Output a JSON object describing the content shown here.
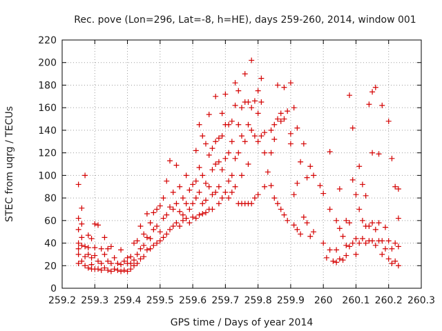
{
  "chart_data": {
    "type": "scatter",
    "title": "Rec. pove (Lon=296, Lat=-8, h=HE), days 259-260, 2014, window 001",
    "xlabel": "GPS time / Days of year 2014",
    "ylabel": "STEC from uqrg / TECUs",
    "xlim": [
      259.2,
      260.3
    ],
    "ylim": [
      0,
      220
    ],
    "xticks": [
      "259.2",
      "259.3",
      "259.4",
      "259.5",
      "259.6",
      "259.7",
      "259.8",
      "259.9",
      "260",
      "260.1",
      "260.2",
      "260.3"
    ],
    "yticks": [
      "0",
      "20",
      "40",
      "60",
      "80",
      "100",
      "120",
      "140",
      "160",
      "180",
      "200",
      "220"
    ],
    "grid": true,
    "marker": "+",
    "color": "#d40000",
    "series": [
      {
        "points": [
          [
            259.25,
            92
          ],
          [
            259.25,
            62
          ],
          [
            259.25,
            52
          ],
          [
            259.25,
            40
          ],
          [
            259.25,
            35
          ],
          [
            259.25,
            30
          ],
          [
            259.25,
            22
          ],
          [
            259.26,
            71
          ],
          [
            259.26,
            57
          ],
          [
            259.26,
            45
          ],
          [
            259.26,
            38
          ],
          [
            259.26,
            24
          ],
          [
            259.27,
            100
          ],
          [
            259.27,
            37
          ],
          [
            259.27,
            28
          ],
          [
            259.27,
            20
          ],
          [
            259.28,
            47
          ],
          [
            259.28,
            36
          ],
          [
            259.28,
            30
          ],
          [
            259.28,
            18
          ],
          [
            259.29,
            44
          ],
          [
            259.29,
            27
          ],
          [
            259.29,
            21
          ],
          [
            259.29,
            17
          ],
          [
            259.3,
            57
          ],
          [
            259.3,
            36
          ],
          [
            259.3,
            29
          ],
          [
            259.3,
            17
          ],
          [
            259.31,
            56
          ],
          [
            259.31,
            24
          ],
          [
            259.31,
            17
          ],
          [
            259.32,
            35
          ],
          [
            259.32,
            22
          ],
          [
            259.32,
            16
          ],
          [
            259.33,
            45
          ],
          [
            259.33,
            30
          ],
          [
            259.33,
            18
          ],
          [
            259.34,
            35
          ],
          [
            259.34,
            24
          ],
          [
            259.34,
            16
          ],
          [
            259.35,
            37
          ],
          [
            259.35,
            22
          ],
          [
            259.35,
            15
          ],
          [
            259.36,
            27
          ],
          [
            259.36,
            17
          ],
          [
            259.37,
            22
          ],
          [
            259.37,
            16
          ],
          [
            259.38,
            34
          ],
          [
            259.38,
            21
          ],
          [
            259.38,
            15
          ],
          [
            259.39,
            24
          ],
          [
            259.39,
            16
          ],
          [
            259.4,
            27
          ],
          [
            259.4,
            22
          ],
          [
            259.4,
            15
          ],
          [
            259.41,
            28
          ],
          [
            259.41,
            22
          ],
          [
            259.41,
            17
          ],
          [
            259.42,
            40
          ],
          [
            259.42,
            25
          ],
          [
            259.42,
            20
          ],
          [
            259.43,
            42
          ],
          [
            259.43,
            30
          ],
          [
            259.43,
            22
          ],
          [
            259.44,
            55
          ],
          [
            259.44,
            35
          ],
          [
            259.44,
            26
          ],
          [
            259.45,
            48
          ],
          [
            259.45,
            38
          ],
          [
            259.45,
            28
          ],
          [
            259.46,
            66
          ],
          [
            259.46,
            45
          ],
          [
            259.46,
            34
          ],
          [
            259.47,
            58
          ],
          [
            259.47,
            44
          ],
          [
            259.47,
            35
          ],
          [
            259.48,
            67
          ],
          [
            259.48,
            52
          ],
          [
            259.48,
            38
          ],
          [
            259.49,
            70
          ],
          [
            259.49,
            55
          ],
          [
            259.49,
            40
          ],
          [
            259.5,
            73
          ],
          [
            259.5,
            50
          ],
          [
            259.5,
            42
          ],
          [
            259.51,
            80
          ],
          [
            259.51,
            62
          ],
          [
            259.51,
            45
          ],
          [
            259.52,
            95
          ],
          [
            259.52,
            65
          ],
          [
            259.52,
            48
          ],
          [
            259.53,
            113
          ],
          [
            259.53,
            72
          ],
          [
            259.53,
            52
          ],
          [
            259.54,
            85
          ],
          [
            259.54,
            70
          ],
          [
            259.54,
            55
          ],
          [
            259.55,
            109
          ],
          [
            259.55,
            75
          ],
          [
            259.55,
            58
          ],
          [
            259.56,
            90
          ],
          [
            259.56,
            68
          ],
          [
            259.56,
            55
          ],
          [
            259.57,
            80
          ],
          [
            259.57,
            65
          ],
          [
            259.57,
            60
          ],
          [
            259.58,
            100
          ],
          [
            259.58,
            75
          ],
          [
            259.58,
            62
          ],
          [
            259.59,
            87
          ],
          [
            259.59,
            70
          ],
          [
            259.59,
            58
          ],
          [
            259.6,
            92
          ],
          [
            259.6,
            75
          ],
          [
            259.6,
            63
          ],
          [
            259.61,
            122
          ],
          [
            259.61,
            95
          ],
          [
            259.61,
            80
          ],
          [
            259.61,
            62
          ],
          [
            259.62,
            145
          ],
          [
            259.62,
            107
          ],
          [
            259.62,
            85
          ],
          [
            259.62,
            65
          ],
          [
            259.63,
            135
          ],
          [
            259.63,
            100
          ],
          [
            259.63,
            75
          ],
          [
            259.63,
            66
          ],
          [
            259.64,
            128
          ],
          [
            259.64,
            93
          ],
          [
            259.64,
            78
          ],
          [
            259.64,
            67
          ],
          [
            259.65,
            154
          ],
          [
            259.65,
            118
          ],
          [
            259.65,
            90
          ],
          [
            259.65,
            70
          ],
          [
            259.66,
            124
          ],
          [
            259.66,
            105
          ],
          [
            259.66,
            83
          ],
          [
            259.66,
            70
          ],
          [
            259.67,
            170
          ],
          [
            259.67,
            130
          ],
          [
            259.67,
            110
          ],
          [
            259.67,
            85
          ],
          [
            259.68,
            133
          ],
          [
            259.68,
            112
          ],
          [
            259.68,
            90
          ],
          [
            259.68,
            75
          ],
          [
            259.69,
            155
          ],
          [
            259.69,
            135
          ],
          [
            259.69,
            105
          ],
          [
            259.69,
            80
          ],
          [
            259.7,
            172
          ],
          [
            259.7,
            145
          ],
          [
            259.7,
            115
          ],
          [
            259.7,
            85
          ],
          [
            259.71,
            145
          ],
          [
            259.71,
            120
          ],
          [
            259.71,
            95
          ],
          [
            259.71,
            80
          ],
          [
            259.72,
            148
          ],
          [
            259.72,
            130
          ],
          [
            259.72,
            100
          ],
          [
            259.72,
            85
          ],
          [
            259.73,
            182
          ],
          [
            259.73,
            162
          ],
          [
            259.73,
            115
          ],
          [
            259.73,
            90
          ],
          [
            259.74,
            175
          ],
          [
            259.74,
            145
          ],
          [
            259.74,
            120
          ],
          [
            259.74,
            75
          ],
          [
            259.75,
            160
          ],
          [
            259.75,
            135
          ],
          [
            259.75,
            100
          ],
          [
            259.75,
            75
          ],
          [
            259.76,
            190
          ],
          [
            259.76,
            165
          ],
          [
            259.76,
            130
          ],
          [
            259.76,
            75
          ],
          [
            259.77,
            165
          ],
          [
            259.77,
            145
          ],
          [
            259.77,
            110
          ],
          [
            259.77,
            75
          ],
          [
            259.78,
            202
          ],
          [
            259.78,
            160
          ],
          [
            259.78,
            140
          ],
          [
            259.78,
            75
          ],
          [
            259.79,
            166
          ],
          [
            259.79,
            135
          ],
          [
            259.79,
            80
          ],
          [
            259.8,
            175
          ],
          [
            259.8,
            155
          ],
          [
            259.8,
            130
          ],
          [
            259.8,
            83
          ],
          [
            259.81,
            186
          ],
          [
            259.81,
            165
          ],
          [
            259.81,
            135
          ],
          [
            259.82,
            138
          ],
          [
            259.82,
            120
          ],
          [
            259.82,
            90
          ],
          [
            259.83,
            103
          ],
          [
            259.84,
            140
          ],
          [
            259.84,
            120
          ],
          [
            259.84,
            91
          ],
          [
            259.85,
            145
          ],
          [
            259.85,
            132
          ],
          [
            259.85,
            80
          ],
          [
            259.86,
            180
          ],
          [
            259.86,
            150
          ],
          [
            259.86,
            75
          ],
          [
            259.87,
            155
          ],
          [
            259.87,
            148
          ],
          [
            259.87,
            70
          ],
          [
            259.88,
            178
          ],
          [
            259.88,
            150
          ],
          [
            259.88,
            65
          ],
          [
            259.89,
            157
          ],
          [
            259.89,
            60
          ],
          [
            259.9,
            182
          ],
          [
            259.9,
            137
          ],
          [
            259.9,
            128
          ],
          [
            259.91,
            83
          ],
          [
            259.91,
            56
          ],
          [
            259.91,
            160
          ],
          [
            259.92,
            142
          ],
          [
            259.92,
            93
          ],
          [
            259.92,
            52
          ],
          [
            259.93,
            112
          ],
          [
            259.93,
            48
          ],
          [
            259.94,
            128
          ],
          [
            259.94,
            63
          ],
          [
            259.95,
            98
          ],
          [
            259.95,
            58
          ],
          [
            259.96,
            108
          ],
          [
            259.96,
            46
          ],
          [
            259.97,
            100
          ],
          [
            259.97,
            50
          ],
          [
            259.99,
            91
          ],
          [
            260.0,
            84
          ],
          [
            260.0,
            40
          ],
          [
            260.01,
            27
          ],
          [
            260.02,
            121
          ],
          [
            260.02,
            70
          ],
          [
            260.02,
            34
          ],
          [
            260.03,
            24
          ],
          [
            260.04,
            60
          ],
          [
            260.04,
            34
          ],
          [
            260.04,
            23
          ],
          [
            260.05,
            88
          ],
          [
            260.05,
            53
          ],
          [
            260.05,
            26
          ],
          [
            260.06,
            46
          ],
          [
            260.06,
            25
          ],
          [
            260.07,
            38
          ],
          [
            260.07,
            29
          ],
          [
            260.07,
            60
          ],
          [
            260.08,
            171
          ],
          [
            260.08,
            58
          ],
          [
            260.08,
            37
          ],
          [
            260.09,
            142
          ],
          [
            260.09,
            96
          ],
          [
            260.09,
            40
          ],
          [
            260.1,
            83
          ],
          [
            260.1,
            44
          ],
          [
            260.1,
            30
          ],
          [
            260.11,
            108
          ],
          [
            260.11,
            70
          ],
          [
            260.11,
            40
          ],
          [
            260.12,
            92
          ],
          [
            260.12,
            60
          ],
          [
            260.12,
            44
          ],
          [
            260.13,
            82
          ],
          [
            260.13,
            55
          ],
          [
            260.13,
            40
          ],
          [
            260.14,
            163
          ],
          [
            260.14,
            55
          ],
          [
            260.14,
            42
          ],
          [
            260.15,
            174
          ],
          [
            260.15,
            120
          ],
          [
            260.15,
            58
          ],
          [
            260.15,
            42
          ],
          [
            260.16,
            178
          ],
          [
            260.16,
            52
          ],
          [
            260.16,
            38
          ],
          [
            260.17,
            119
          ],
          [
            260.17,
            58
          ],
          [
            260.17,
            42
          ],
          [
            260.18,
            162
          ],
          [
            260.18,
            42
          ],
          [
            260.18,
            30
          ],
          [
            260.19,
            54
          ],
          [
            260.19,
            35
          ],
          [
            260.2,
            148
          ],
          [
            260.2,
            42
          ],
          [
            260.2,
            26
          ],
          [
            260.21,
            115
          ],
          [
            260.21,
            35
          ],
          [
            260.21,
            22
          ],
          [
            260.22,
            90
          ],
          [
            260.22,
            40
          ],
          [
            260.22,
            24
          ],
          [
            260.23,
            88
          ],
          [
            260.23,
            62
          ],
          [
            260.23,
            37
          ],
          [
            260.23,
            20
          ]
        ]
      }
    ]
  }
}
